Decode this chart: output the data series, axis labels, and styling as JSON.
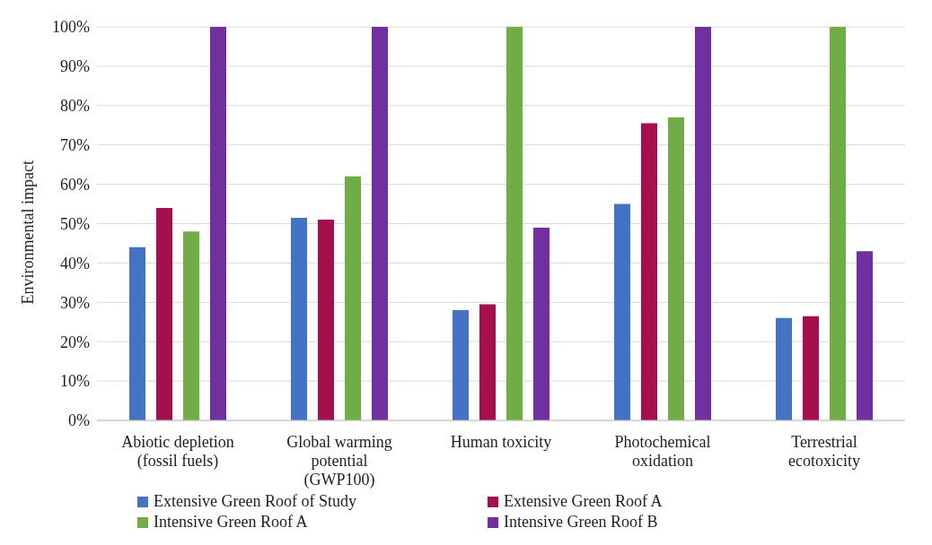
{
  "chart_data": {
    "type": "bar",
    "ylabel": "Environmental impact",
    "categories": [
      "Abiotic depletion (fossil fuels)",
      "Global warming potential (GWP100)",
      "Human toxicity",
      "Photochemical oxidation",
      "Terrestrial ecotoxicity"
    ],
    "series": [
      {
        "name": "Extensive Green Roof of Study",
        "color": "#4472c4",
        "values": [
          44,
          51.5,
          28,
          55,
          26
        ]
      },
      {
        "name": "Extensive Green Roof A",
        "color": "#a50f4e",
        "values": [
          54,
          51,
          29.5,
          75.5,
          26.5
        ]
      },
      {
        "name": "Intensive Green Roof A",
        "color": "#70ad47",
        "values": [
          48,
          62,
          100,
          77,
          100
        ]
      },
      {
        "name": "Intensive Green Roof B",
        "color": "#7030a0",
        "values": [
          100,
          100,
          49,
          100,
          43
        ]
      }
    ],
    "ylim": [
      0,
      100
    ],
    "yticks": [
      {
        "value": 0,
        "label": "0%"
      },
      {
        "value": 10,
        "label": "10%"
      },
      {
        "value": 20,
        "label": "20%"
      },
      {
        "value": 30,
        "label": "30%"
      },
      {
        "value": 40,
        "label": "40%"
      },
      {
        "value": 50,
        "label": "50%"
      },
      {
        "value": 60,
        "label": "60%"
      },
      {
        "value": 70,
        "label": "70%"
      },
      {
        "value": 80,
        "label": "80%"
      },
      {
        "value": 90,
        "label": "90%"
      },
      {
        "value": 100,
        "label": "100%"
      }
    ],
    "grid": "y",
    "legend": "bottom"
  }
}
